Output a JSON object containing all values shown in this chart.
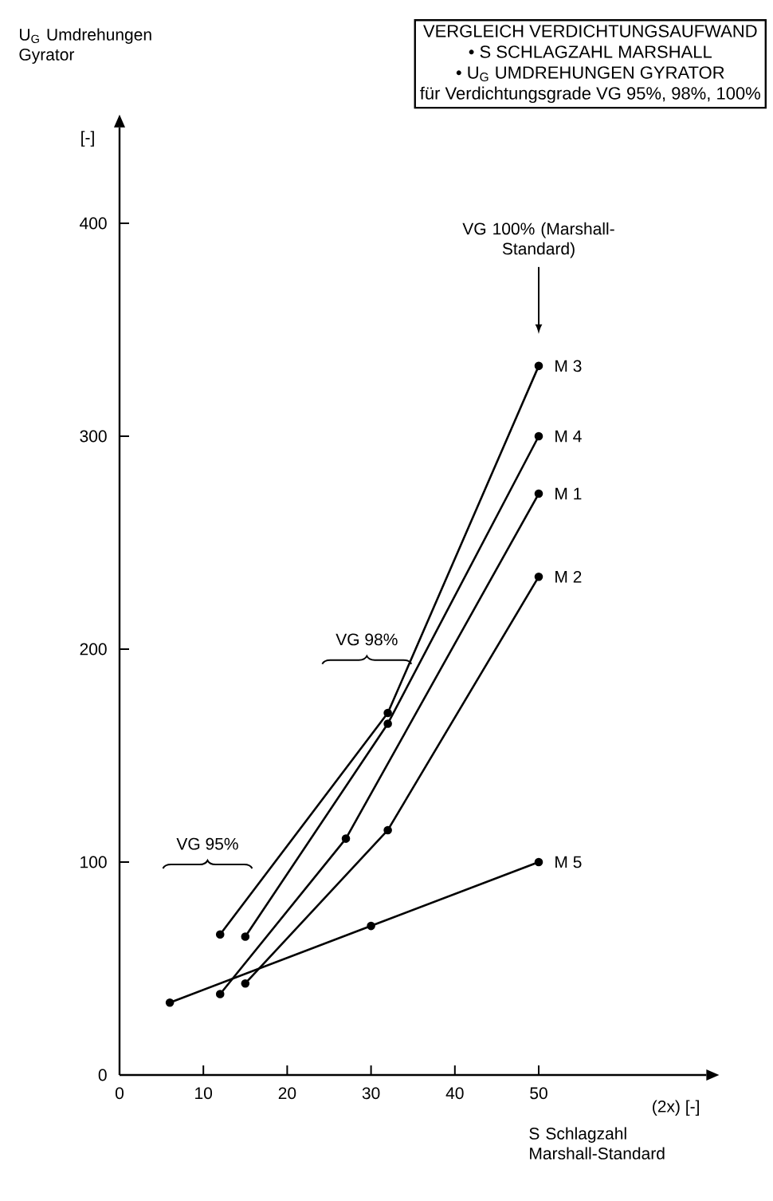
{
  "chart_data": {
    "type": "line",
    "title": "VERGLEICH  VERDICHTUNGSAUFWAND",
    "ylabel": "U$_{G}$ Umdrehungen Gyrator",
    "xlabel": "S  Schlagzahl Marshall-Standard",
    "annotations": [
      "• S  SCHLAGZAHL MARSHALL",
      "• U$_{G}$ UMDREHUNGEN GYRATOR",
      "für Verdichtungsgrade VG 95%, 98%, 100%",
      "[-]",
      "(2x)  [-]",
      "VG 95%",
      "VG 98%",
      "VG 100% (Marshall-Standard)"
    ],
    "series": [
      {
        "name": "M 1",
        "color": "#000000",
        "x": [
          12,
          27,
          50
        ],
        "values": [
          38,
          111,
          273
        ]
      },
      {
        "name": "M 2",
        "color": "#000000",
        "x": [
          15,
          32,
          50
        ],
        "values": [
          43,
          115,
          234
        ]
      },
      {
        "name": "M 3",
        "color": "#000000",
        "x": [
          12,
          32,
          50
        ],
        "values": [
          66,
          170,
          333
        ]
      },
      {
        "name": "M 4",
        "color": "#000000",
        "x": [
          15,
          32,
          50
        ],
        "values": [
          65,
          165,
          300
        ]
      },
      {
        "name": "M 5",
        "color": "#000000",
        "x": [
          6,
          30,
          50
        ],
        "values": [
          34,
          70,
          100
        ]
      }
    ],
    "xlim": [
      0,
      70
    ],
    "ylim": [
      0,
      445
    ],
    "xticks": [
      0,
      10,
      20,
      30,
      40,
      50
    ],
    "yticks": [
      0,
      100,
      200,
      300,
      400
    ],
    "grid": false,
    "marker": "circle",
    "line_style": "solid"
  }
}
